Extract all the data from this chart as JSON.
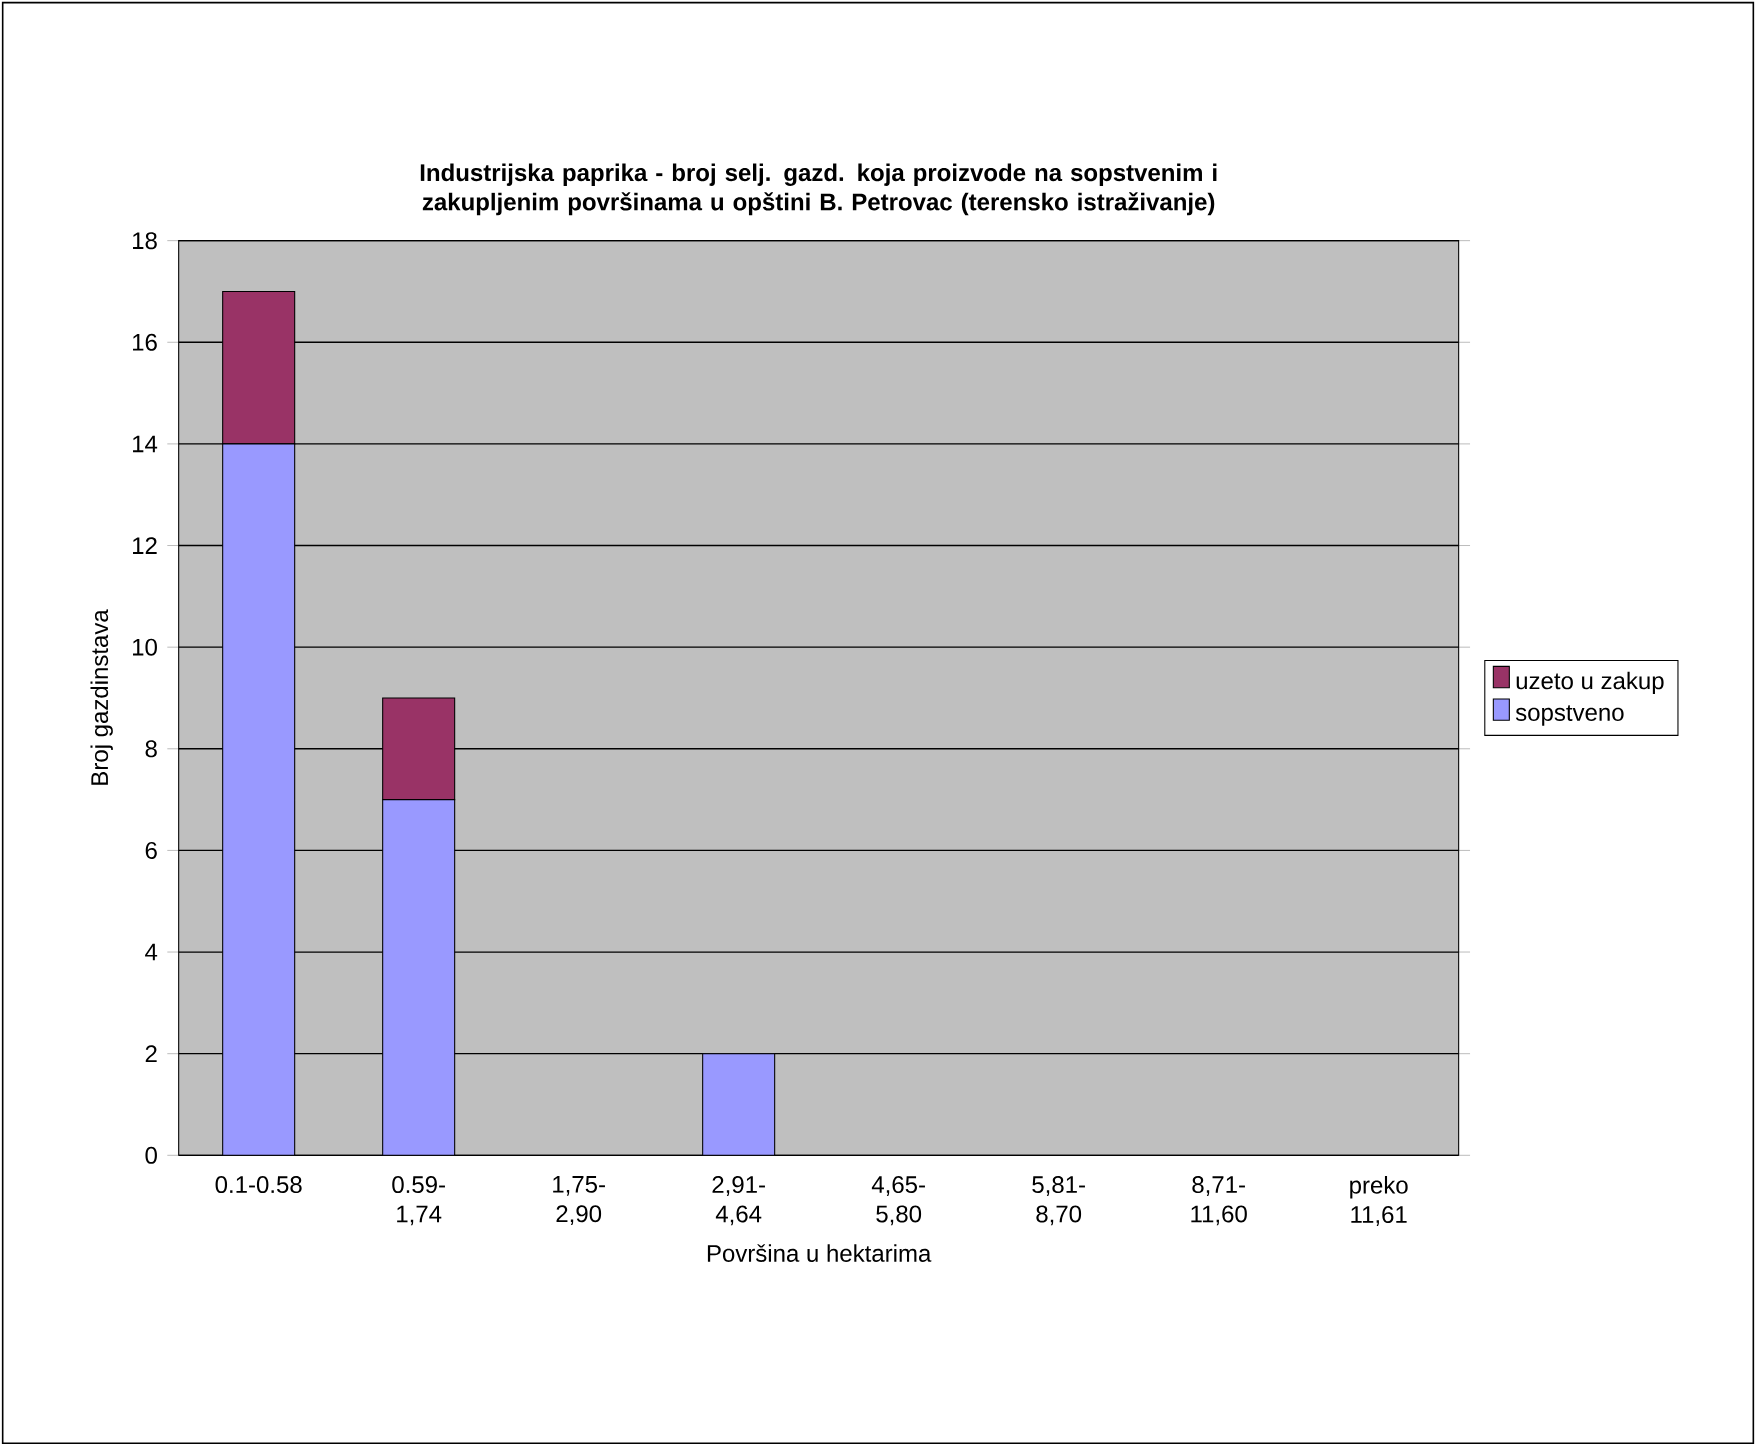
{
  "chart_data": {
    "type": "bar",
    "stacked": true,
    "title": "Industrijska paprika - broj selj. gazd. koja proizvode na sopstvenim i zakupljenim površinama u opštini B. Petrovac  (terensko istraživanje)",
    "xlabel": "Površina u hektarima",
    "ylabel": "Broj gazdinstava",
    "categories": [
      "0.1-0.58",
      "0.59- 1,74",
      "1,75- 2,90",
      "2,91- 4,64",
      "4,65- 5,80",
      "5,81- 8,70",
      "8,71- 11,60",
      "preko 11,61"
    ],
    "series": [
      {
        "name": "sopstveno",
        "color": "#9999ff",
        "values": [
          14,
          7,
          0,
          2,
          0,
          0,
          0,
          0
        ]
      },
      {
        "name": "uzeto u zakup",
        "color": "#993366",
        "values": [
          3,
          2,
          0,
          0,
          0,
          0,
          0,
          0
        ]
      }
    ],
    "ylim": [
      0,
      18
    ],
    "yticks": [
      0,
      2,
      4,
      6,
      8,
      10,
      12,
      14,
      16,
      18
    ],
    "grid": "y",
    "legend": "right"
  }
}
